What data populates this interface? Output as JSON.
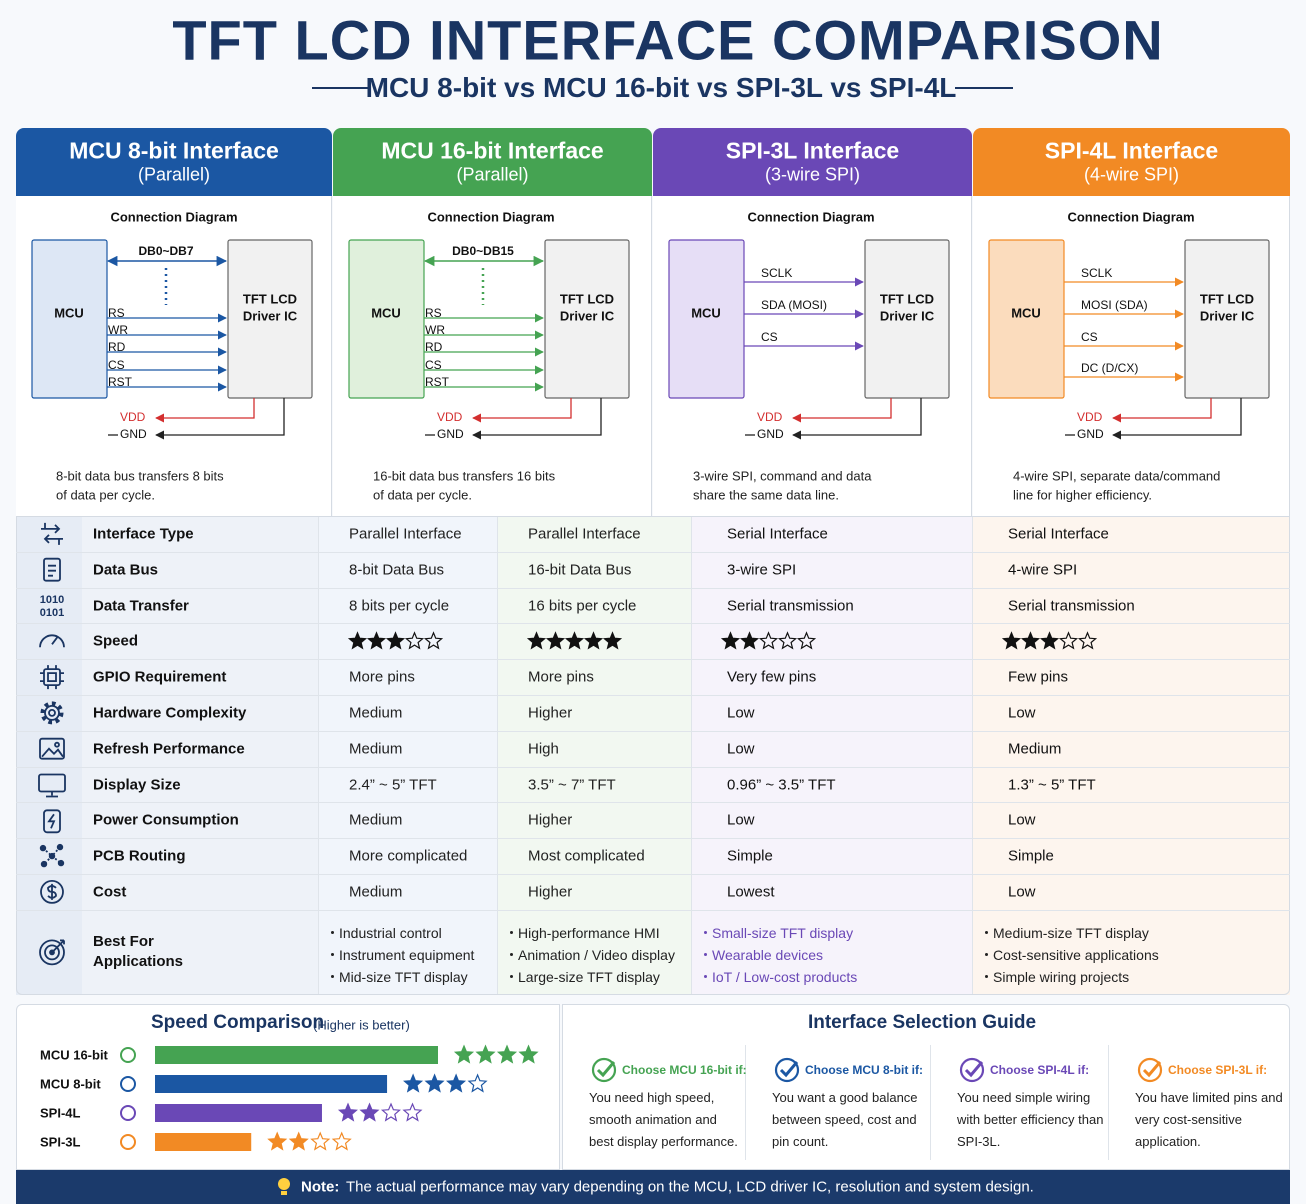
{
  "header": {
    "title": "TFT LCD INTERFACE COMPARISON",
    "subtitle": "MCU 8-bit vs MCU 16-bit vs SPI-3L vs SPI-4L"
  },
  "columns": [
    {
      "title": "MCU 8-bit Interface",
      "subtitle": "(Parallel)",
      "color": "#1b57a3",
      "tint": "#dde7f5",
      "diagram_title": "Connection Diagram",
      "mcu_label": "MCU",
      "ic_label": [
        "TFT LCD",
        "Driver IC"
      ],
      "bus_label": "DB0~DB7",
      "signals": [
        "RS",
        "WR",
        "RD",
        "CS",
        "RST"
      ],
      "power": [
        "VDD",
        "GND"
      ],
      "description": [
        "8-bit data bus transfers 8 bits",
        "of data per cycle."
      ]
    },
    {
      "title": "MCU 16-bit Interface",
      "subtitle": "(Parallel)",
      "color": "#45a352",
      "tint": "#e0f0dc",
      "diagram_title": "Connection Diagram",
      "mcu_label": "MCU",
      "ic_label": [
        "TFT LCD",
        "Driver IC"
      ],
      "bus_label": "DB0~DB15",
      "signals": [
        "RS",
        "WR",
        "RD",
        "CS",
        "RST"
      ],
      "power": [
        "VDD",
        "GND"
      ],
      "description": [
        "16-bit data bus transfers 16 bits",
        "of data per cycle."
      ]
    },
    {
      "title": "SPI-3L Interface",
      "subtitle": "(3-wire SPI)",
      "color": "#6a48b6",
      "tint": "#e6def6",
      "diagram_title": "Connection Diagram",
      "mcu_label": "MCU",
      "ic_label": [
        "TFT LCD",
        "Driver IC"
      ],
      "signals": [
        "SCLK",
        "SDA (MOSI)",
        "CS"
      ],
      "power": [
        "VDD",
        "GND"
      ],
      "description": [
        "3-wire SPI, command and data",
        "share the same data line."
      ]
    },
    {
      "title": "SPI-4L Interface",
      "subtitle": "(4-wire SPI)",
      "color": "#f28a24",
      "tint": "#fbdcbd",
      "diagram_title": "Connection Diagram",
      "mcu_label": "MCU",
      "ic_label": [
        "TFT LCD",
        "Driver IC"
      ],
      "signals": [
        "SCLK",
        "MOSI (SDA)",
        "CS",
        "DC (D/CX)"
      ],
      "power": [
        "VDD",
        "GND"
      ],
      "description": [
        "4-wire SPI, separate data/command",
        "line for higher efficiency."
      ]
    }
  ],
  "table": {
    "rows": [
      {
        "label": "Interface Type",
        "cells": [
          "Parallel Interface",
          "Parallel Interface",
          "Serial Interface",
          "Serial Interface"
        ]
      },
      {
        "label": "Data Bus",
        "cells": [
          "8-bit Data Bus",
          "16-bit Data Bus",
          "3-wire SPI",
          "4-wire SPI"
        ]
      },
      {
        "label": "Data Transfer",
        "icon_text": [
          "1010",
          "0101"
        ],
        "cells": [
          "8 bits per cycle",
          "16 bits per cycle",
          "Serial transmission",
          "Serial transmission"
        ]
      },
      {
        "label": "Speed",
        "stars": [
          3,
          5,
          2,
          3
        ],
        "star_max": 5
      },
      {
        "label": "GPIO Requirement",
        "cells": [
          "More pins",
          "More pins",
          "Very few pins",
          "Few pins"
        ]
      },
      {
        "label": "Hardware Complexity",
        "cells": [
          "Medium",
          "Higher",
          "Low",
          "Low"
        ]
      },
      {
        "label": "Refresh Performance",
        "cells": [
          "Medium",
          "High",
          "Low",
          "Medium"
        ]
      },
      {
        "label": "Display Size",
        "cells": [
          "2.4” ~ 5” TFT",
          "3.5” ~ 7” TFT",
          "0.96” ~ 3.5” TFT",
          "1.3” ~ 5” TFT"
        ]
      },
      {
        "label": "Power Consumption",
        "cells": [
          "Medium",
          "Higher",
          "Low",
          "Low"
        ]
      },
      {
        "label": "PCB Routing",
        "cells": [
          "More complicated",
          "Most complicated",
          "Simple",
          "Simple"
        ]
      },
      {
        "label": "Cost",
        "cells": [
          "Medium",
          "Higher",
          "Lowest",
          "Low"
        ]
      }
    ],
    "applications": {
      "label": "Best For Applications",
      "items": [
        [
          "Industrial control",
          "Instrument equipment",
          "Mid-size TFT display"
        ],
        [
          "High-performance HMI",
          "Animation / Video display",
          "Large-size TFT display"
        ],
        [
          "Small-size TFT display",
          "Wearable devices",
          "IoT / Low-cost products"
        ],
        [
          "Medium-size TFT display",
          "Cost-sensitive applications",
          "Simple wiring projects"
        ]
      ]
    }
  },
  "speed_comparison": {
    "title": "Speed Comparison",
    "note": "(Higher is better)",
    "xlim": [
      0,
      100
    ],
    "items": [
      {
        "name": "MCU 16-bit",
        "value": 100,
        "stars": 4,
        "stars_total": 4,
        "color": "#45a352"
      },
      {
        "name": "MCU 8-bit",
        "value": 82,
        "stars": 3,
        "stars_total": 4,
        "color": "#1b57a3"
      },
      {
        "name": "SPI-4L",
        "value": 59,
        "stars": 2,
        "stars_total": 4,
        "color": "#6a48b6"
      },
      {
        "name": "SPI-3L",
        "value": 34,
        "stars": 2,
        "stars_total": 4,
        "color": "#f28a24"
      }
    ]
  },
  "selection_guide": {
    "title": "Interface Selection Guide",
    "items": [
      {
        "heading": "Choose MCU 16-bit if:",
        "text": "You need high speed, smooth animation and best display performance.",
        "color": "#45a352"
      },
      {
        "heading": "Choose MCU 8-bit if:",
        "text": "You want a good balance between speed, cost and pin count.",
        "color": "#1b57a3"
      },
      {
        "heading": "Choose SPI-4L if:",
        "text": "You need simple wiring with better efficiency than SPI-3L.",
        "color": "#6a48b6"
      },
      {
        "heading": "Choose SPI-3L if:",
        "text": "You have limited pins and very cost-sensitive application.",
        "color": "#f28a24"
      }
    ]
  },
  "note": {
    "label": "Note:",
    "text": "The actual performance may vary depending on the MCU, LCD driver IC, resolution and system design."
  }
}
